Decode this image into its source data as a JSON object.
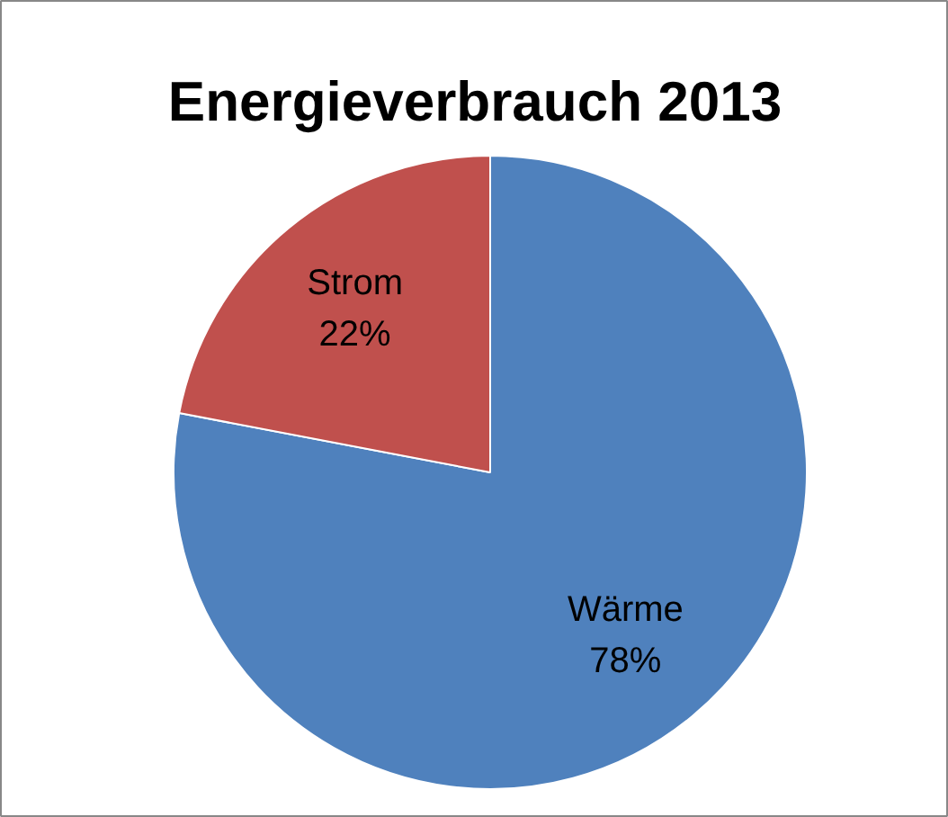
{
  "chart_data": {
    "type": "pie",
    "title": "Energieverbrauch 2013",
    "categories": [
      "Wärme",
      "Strom"
    ],
    "values": [
      78,
      22
    ],
    "colors": [
      "#4f81bd",
      "#c0504d"
    ],
    "value_labels": [
      "78%",
      "22%"
    ]
  }
}
